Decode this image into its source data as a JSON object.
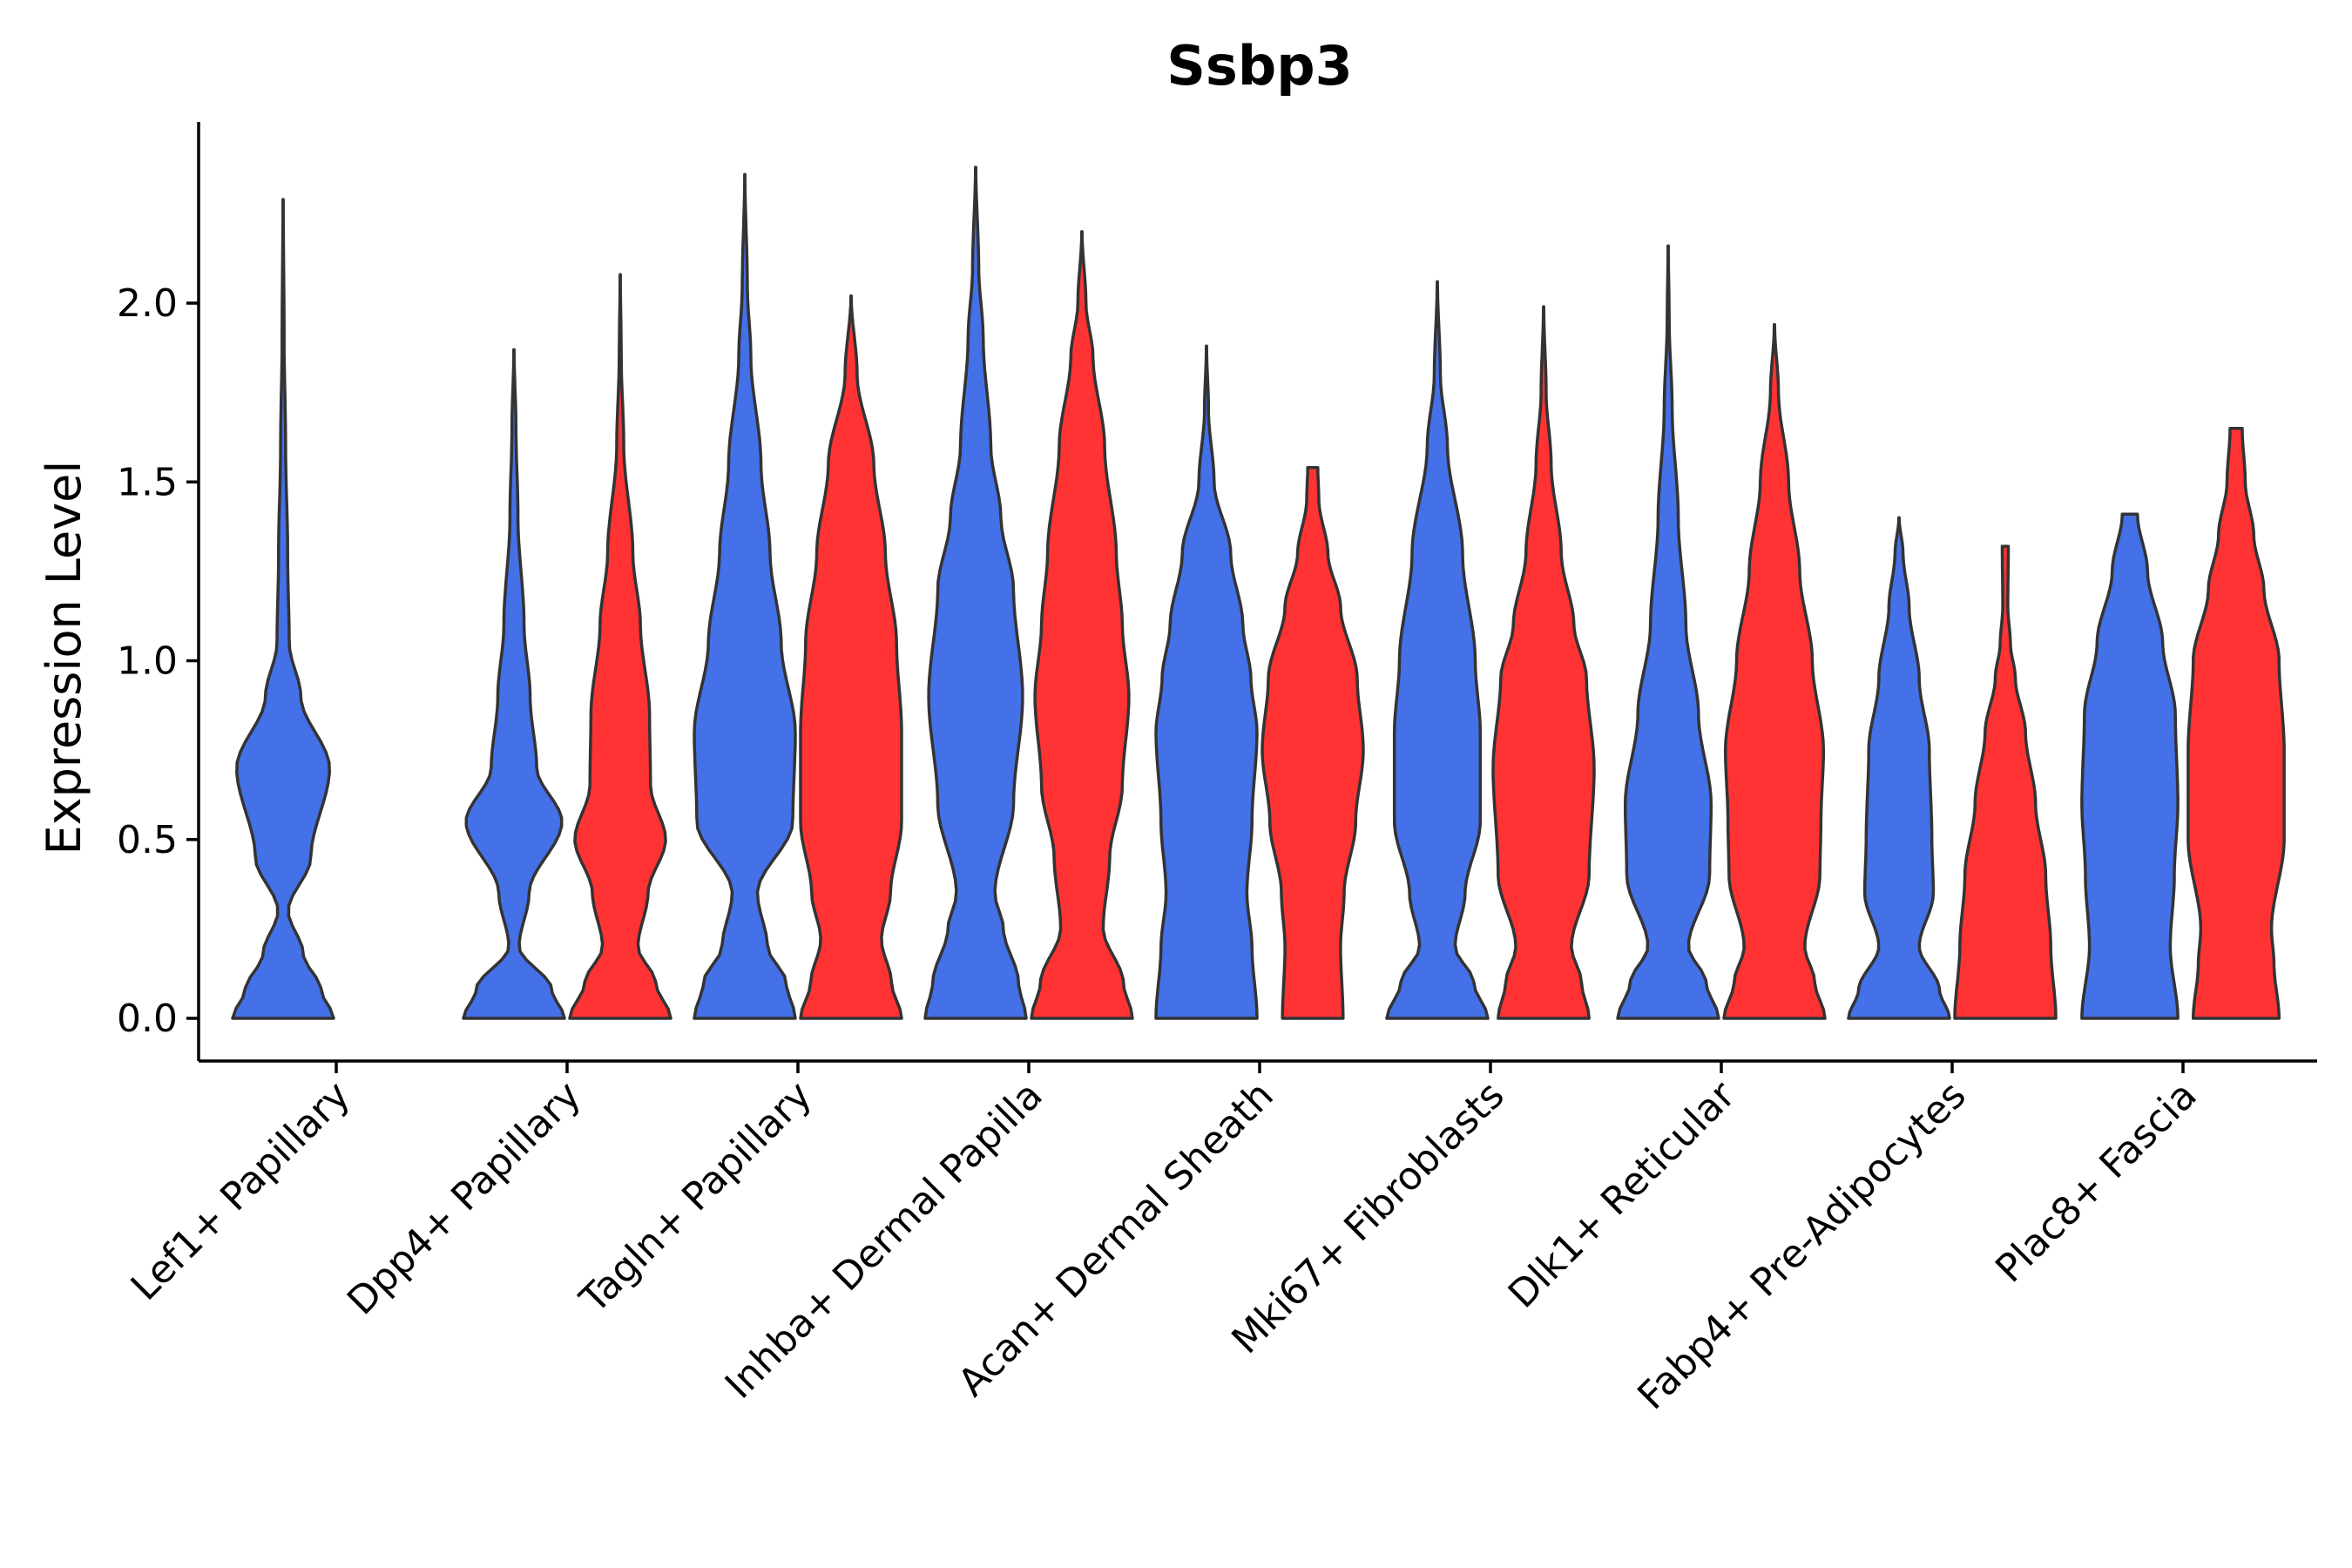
{
  "chart_data": {
    "type": "violin",
    "title": "Ssbp3",
    "xlabel": "",
    "ylabel": "Expression Level",
    "ylim": [
      -0.12,
      2.5
    ],
    "y_ticks": [
      "0.0",
      "0.5",
      "1.0",
      "1.5",
      "2.0"
    ],
    "y_tick_values": [
      0,
      0.5,
      1.0,
      1.5,
      2.0
    ],
    "categories": [
      "Lef1+ Papillary",
      "Dpp4+ Papillary",
      "Tagln+ Papillary",
      "Inhba+ Dermal Papilla",
      "Acan+ Dermal Sheath",
      "Mki67+ Fibroblasts",
      "Dlk1+ Reticular",
      "Fabp4+ Pre-Adipocytes",
      "Plac8+ Fascia"
    ],
    "series_colors": {
      "group1": "#4470E8",
      "group2": "#FF3333"
    },
    "violins": [
      {
        "category": "Lef1+ Papillary",
        "group": "group1",
        "max": 2.29,
        "profile": [
          [
            0,
            1.0
          ],
          [
            0.08,
            0.75
          ],
          [
            0.18,
            0.4
          ],
          [
            0.3,
            0.1
          ],
          [
            0.45,
            0.55
          ],
          [
            0.7,
            0.92
          ],
          [
            0.9,
            0.35
          ],
          [
            1.05,
            0.12
          ],
          [
            1.3,
            0.09
          ],
          [
            1.6,
            0.05
          ],
          [
            1.9,
            0.02
          ],
          [
            2.29,
            0.003
          ]
        ]
      },
      {
        "category": "Dpp4+ Papillary",
        "group": "group1",
        "max": 1.87,
        "profile": [
          [
            0,
            1.0
          ],
          [
            0.08,
            0.75
          ],
          [
            0.2,
            0.1
          ],
          [
            0.35,
            0.3
          ],
          [
            0.55,
            0.95
          ],
          [
            0.7,
            0.45
          ],
          [
            0.9,
            0.32
          ],
          [
            1.1,
            0.2
          ],
          [
            1.4,
            0.08
          ],
          [
            1.65,
            0.04
          ],
          [
            1.87,
            0.003
          ]
        ]
      },
      {
        "category": "Dpp4+ Papillary",
        "group": "group2",
        "max": 2.08,
        "profile": [
          [
            0,
            1.0
          ],
          [
            0.1,
            0.7
          ],
          [
            0.2,
            0.35
          ],
          [
            0.35,
            0.55
          ],
          [
            0.5,
            0.9
          ],
          [
            0.65,
            0.6
          ],
          [
            0.85,
            0.58
          ],
          [
            1.1,
            0.4
          ],
          [
            1.3,
            0.25
          ],
          [
            1.6,
            0.07
          ],
          [
            1.85,
            0.02
          ],
          [
            2.08,
            0.003
          ]
        ]
      },
      {
        "category": "Tagln+ Papillary",
        "group": "group1",
        "max": 2.36,
        "profile": [
          [
            0,
            1.0
          ],
          [
            0.1,
            0.82
          ],
          [
            0.2,
            0.45
          ],
          [
            0.35,
            0.25
          ],
          [
            0.55,
            0.95
          ],
          [
            0.8,
            1.0
          ],
          [
            1.05,
            0.72
          ],
          [
            1.3,
            0.5
          ],
          [
            1.55,
            0.32
          ],
          [
            1.85,
            0.12
          ],
          [
            2.05,
            0.05
          ],
          [
            2.36,
            0.003
          ]
        ]
      },
      {
        "category": "Tagln+ Papillary",
        "group": "group2",
        "max": 2.02,
        "profile": [
          [
            0,
            1.0
          ],
          [
            0.1,
            0.8
          ],
          [
            0.22,
            0.6
          ],
          [
            0.35,
            0.78
          ],
          [
            0.55,
            1.0
          ],
          [
            0.8,
            1.0
          ],
          [
            1.05,
            0.9
          ],
          [
            1.3,
            0.68
          ],
          [
            1.55,
            0.45
          ],
          [
            1.8,
            0.12
          ],
          [
            2.02,
            0.003
          ]
        ]
      },
      {
        "category": "Inhba+ Dermal Papilla",
        "group": "group1",
        "max": 2.38,
        "profile": [
          [
            0,
            1.0
          ],
          [
            0.1,
            0.85
          ],
          [
            0.25,
            0.55
          ],
          [
            0.35,
            0.38
          ],
          [
            0.6,
            0.75
          ],
          [
            0.9,
            0.93
          ],
          [
            1.2,
            0.75
          ],
          [
            1.4,
            0.5
          ],
          [
            1.6,
            0.3
          ],
          [
            1.9,
            0.15
          ],
          [
            2.1,
            0.06
          ],
          [
            2.38,
            0.003
          ]
        ]
      },
      {
        "category": "Inhba+ Dermal Papilla",
        "group": "group2",
        "max": 2.2,
        "profile": [
          [
            0,
            1.0
          ],
          [
            0.1,
            0.82
          ],
          [
            0.25,
            0.42
          ],
          [
            0.45,
            0.55
          ],
          [
            0.65,
            0.8
          ],
          [
            0.9,
            0.93
          ],
          [
            1.1,
            0.8
          ],
          [
            1.3,
            0.68
          ],
          [
            1.6,
            0.45
          ],
          [
            1.85,
            0.22
          ],
          [
            2.0,
            0.08
          ],
          [
            2.2,
            0.003
          ]
        ]
      },
      {
        "category": "Acan+ Dermal Sheath",
        "group": "group1",
        "max": 1.88,
        "profile": [
          [
            0,
            1.0
          ],
          [
            0.2,
            0.9
          ],
          [
            0.35,
            0.8
          ],
          [
            0.55,
            0.9
          ],
          [
            0.8,
            1.0
          ],
          [
            0.95,
            0.88
          ],
          [
            1.1,
            0.72
          ],
          [
            1.3,
            0.48
          ],
          [
            1.5,
            0.15
          ],
          [
            1.7,
            0.04
          ],
          [
            1.88,
            0.003
          ]
        ]
      },
      {
        "category": "Acan+ Dermal Sheath",
        "group": "group2",
        "max": 1.54,
        "profile": [
          [
            0,
            0.6
          ],
          [
            0.2,
            0.55
          ],
          [
            0.35,
            0.62
          ],
          [
            0.55,
            0.85
          ],
          [
            0.75,
            1.0
          ],
          [
            0.95,
            0.88
          ],
          [
            1.15,
            0.55
          ],
          [
            1.3,
            0.3
          ],
          [
            1.45,
            0.12
          ],
          [
            1.54,
            0.1
          ]
        ]
      },
      {
        "category": "Mki67+ Fibroblasts",
        "group": "group1",
        "max": 2.06,
        "profile": [
          [
            0,
            1.0
          ],
          [
            0.1,
            0.72
          ],
          [
            0.2,
            0.35
          ],
          [
            0.35,
            0.55
          ],
          [
            0.55,
            0.85
          ],
          [
            0.8,
            0.85
          ],
          [
            1.0,
            0.75
          ],
          [
            1.3,
            0.5
          ],
          [
            1.6,
            0.2
          ],
          [
            1.8,
            0.06
          ],
          [
            2.06,
            0.003
          ]
        ]
      },
      {
        "category": "Mki67+ Fibroblasts",
        "group": "group2",
        "max": 1.99,
        "profile": [
          [
            0,
            0.9
          ],
          [
            0.1,
            0.75
          ],
          [
            0.2,
            0.55
          ],
          [
            0.4,
            0.9
          ],
          [
            0.7,
            1.0
          ],
          [
            0.95,
            0.85
          ],
          [
            1.1,
            0.6
          ],
          [
            1.3,
            0.35
          ],
          [
            1.55,
            0.15
          ],
          [
            1.75,
            0.05
          ],
          [
            1.99,
            0.003
          ]
        ]
      },
      {
        "category": "Dlk1+ Reticular",
        "group": "group1",
        "max": 2.16,
        "profile": [
          [
            0,
            1.0
          ],
          [
            0.1,
            0.75
          ],
          [
            0.2,
            0.4
          ],
          [
            0.4,
            0.82
          ],
          [
            0.6,
            0.85
          ],
          [
            0.85,
            0.6
          ],
          [
            1.1,
            0.35
          ],
          [
            1.4,
            0.2
          ],
          [
            1.7,
            0.08
          ],
          [
            1.95,
            0.02
          ],
          [
            2.16,
            0.003
          ]
        ]
      },
      {
        "category": "Dlk1+ Reticular",
        "group": "group2",
        "max": 1.94,
        "profile": [
          [
            0,
            1.0
          ],
          [
            0.1,
            0.8
          ],
          [
            0.2,
            0.6
          ],
          [
            0.4,
            0.9
          ],
          [
            0.55,
            0.92
          ],
          [
            0.75,
            0.97
          ],
          [
            1.0,
            0.75
          ],
          [
            1.25,
            0.5
          ],
          [
            1.5,
            0.28
          ],
          [
            1.75,
            0.08
          ],
          [
            1.94,
            0.003
          ]
        ]
      },
      {
        "category": "Fabp4+ Pre-Adipocytes",
        "group": "group1",
        "max": 1.4,
        "profile": [
          [
            0,
            1.0
          ],
          [
            0.08,
            0.8
          ],
          [
            0.2,
            0.4
          ],
          [
            0.35,
            0.68
          ],
          [
            0.5,
            0.65
          ],
          [
            0.75,
            0.6
          ],
          [
            0.95,
            0.4
          ],
          [
            1.15,
            0.2
          ],
          [
            1.3,
            0.08
          ],
          [
            1.4,
            0.003
          ]
        ]
      },
      {
        "category": "Fabp4+ Pre-Adipocytes",
        "group": "group2",
        "max": 1.32,
        "profile": [
          [
            0,
            1.0
          ],
          [
            0.2,
            0.9
          ],
          [
            0.4,
            0.8
          ],
          [
            0.6,
            0.6
          ],
          [
            0.8,
            0.4
          ],
          [
            0.95,
            0.2
          ],
          [
            1.05,
            0.1
          ],
          [
            1.15,
            0.05
          ],
          [
            1.32,
            0.06
          ]
        ]
      },
      {
        "category": "Plac8+ Fascia",
        "group": "group1",
        "max": 1.41,
        "profile": [
          [
            0,
            0.95
          ],
          [
            0.2,
            0.8
          ],
          [
            0.4,
            0.88
          ],
          [
            0.6,
            0.95
          ],
          [
            0.85,
            0.9
          ],
          [
            1.05,
            0.65
          ],
          [
            1.25,
            0.35
          ],
          [
            1.41,
            0.15
          ]
        ]
      },
      {
        "category": "Plac8+ Fascia",
        "group": "group2",
        "max": 1.65,
        "profile": [
          [
            0,
            0.85
          ],
          [
            0.15,
            0.75
          ],
          [
            0.25,
            0.7
          ],
          [
            0.5,
            0.95
          ],
          [
            0.75,
            0.95
          ],
          [
            1.0,
            0.85
          ],
          [
            1.2,
            0.55
          ],
          [
            1.35,
            0.35
          ],
          [
            1.5,
            0.18
          ],
          [
            1.65,
            0.12
          ]
        ]
      }
    ]
  }
}
